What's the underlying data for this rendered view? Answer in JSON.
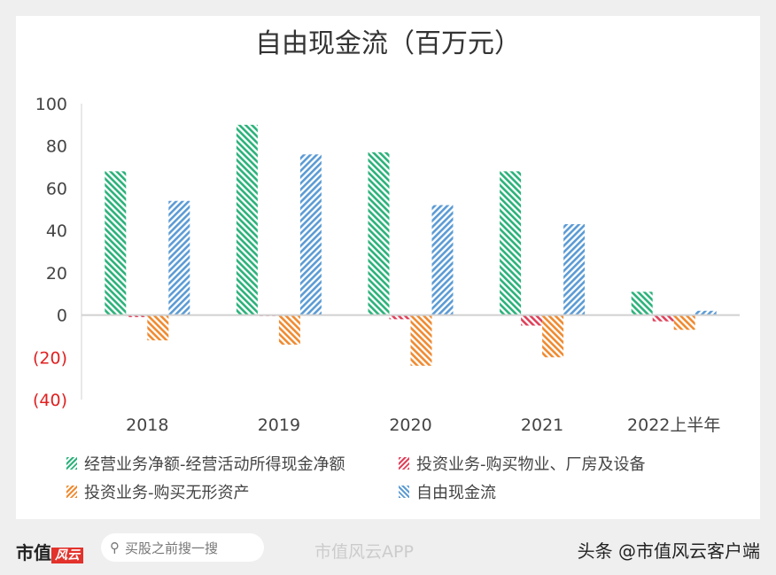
{
  "chart_data": {
    "type": "bar",
    "title": "自由现金流（百万元）",
    "categories": [
      "2018",
      "2019",
      "2020",
      "2021",
      "2022上半年"
    ],
    "ylim": [
      -40,
      100
    ],
    "yticks": [
      100,
      80,
      60,
      40,
      20,
      0,
      -20,
      -40
    ],
    "ytick_labels": [
      "100",
      "80",
      "60",
      "40",
      "20",
      "0",
      "(20)",
      "(40)"
    ],
    "negative_tick_color": "#e02020",
    "legend_position": "bottom",
    "series": [
      {
        "name": "经营业务净额-经营活动所得现金净额",
        "color": "#2bb27a",
        "values": [
          68,
          90,
          77,
          68,
          11
        ]
      },
      {
        "name": "投资业务-购买物业、厂房及设备",
        "color": "#e0405a",
        "values": [
          -1,
          -0.5,
          -2,
          -5,
          -3
        ]
      },
      {
        "name": "投资业务-购买无形资产",
        "color": "#f08a30",
        "values": [
          -12,
          -14,
          -24,
          -20,
          -7
        ]
      },
      {
        "name": "自由现金流",
        "color": "#5b9bd5",
        "values": [
          54,
          76,
          52,
          43,
          2
        ]
      }
    ]
  },
  "footer": {
    "brand": "市值",
    "brand_logo": "风云",
    "search_placeholder": "买股之前搜一搜",
    "weibo": "市值风云APP",
    "toutiao": "头条 @市值风云客户端"
  }
}
